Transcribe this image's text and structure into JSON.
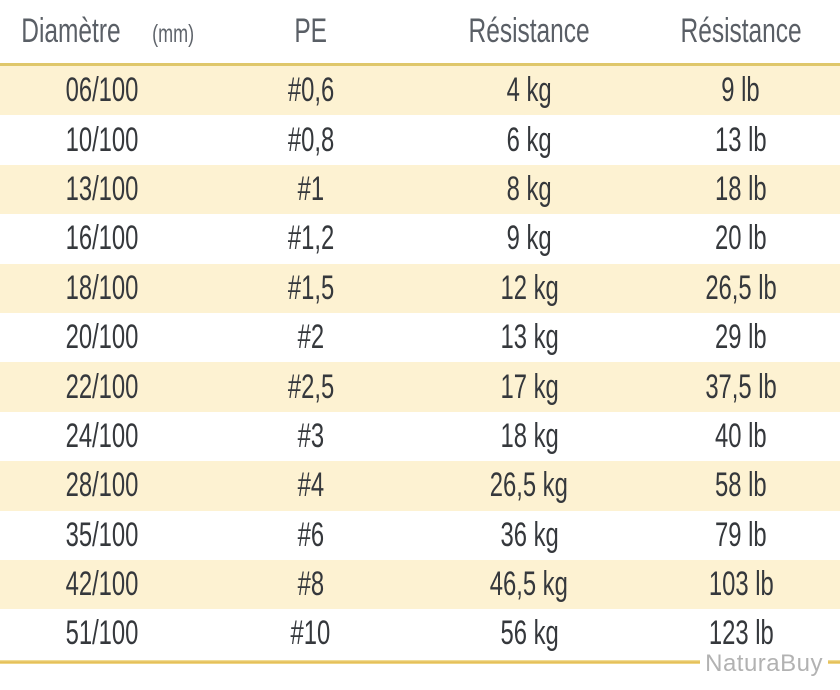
{
  "table": {
    "headers": [
      {
        "label": "Diamètre",
        "unit": "(mm)"
      },
      {
        "label": "PE"
      },
      {
        "label": "Résistance"
      },
      {
        "label": "Résistance"
      }
    ],
    "rows": [
      [
        "06/100",
        "#0,6",
        "4 kg",
        "9 lb"
      ],
      [
        "10/100",
        "#0,8",
        "6 kg",
        "13 lb"
      ],
      [
        "13/100",
        "#1",
        "8 kg",
        "18 lb"
      ],
      [
        "16/100",
        "#1,2",
        "9 kg",
        "20 lb"
      ],
      [
        "18/100",
        "#1,5",
        "12 kg",
        "26,5 lb"
      ],
      [
        "20/100",
        "#2",
        "13 kg",
        "29 lb"
      ],
      [
        "22/100",
        "#2,5",
        "17 kg",
        "37,5 lb"
      ],
      [
        "24/100",
        "#3",
        "18 kg",
        "40 lb"
      ],
      [
        "28/100",
        "#4",
        "26,5 kg",
        "58 lb"
      ],
      [
        "35/100",
        "#6",
        "36 kg",
        "79 lb"
      ],
      [
        "42/100",
        "#8",
        "46,5 kg",
        "103 lb"
      ],
      [
        "51/100",
        "#10",
        "56 kg",
        "123 lb"
      ]
    ]
  },
  "watermark": "NaturaBuy",
  "colors": {
    "accent_gold": "#e2bd4f",
    "header_divider_gold": "#dfc76b",
    "row_stripe_cream": "#fdf2d2",
    "header_text": "#5a5f66",
    "body_text": "#35383c",
    "watermark_gray": "#b2b2b2"
  },
  "chart_data": {
    "type": "table",
    "title": "",
    "columns": [
      "Diamètre (mm)",
      "PE",
      "Résistance",
      "Résistance"
    ],
    "column_units": [
      "mm",
      "PE rating",
      "kg",
      "lb"
    ],
    "rows": [
      [
        "06/100",
        "#0,6",
        "4 kg",
        "9 lb"
      ],
      [
        "10/100",
        "#0,8",
        "6 kg",
        "13 lb"
      ],
      [
        "13/100",
        "#1",
        "8 kg",
        "18 lb"
      ],
      [
        "16/100",
        "#1,2",
        "9 kg",
        "20 lb"
      ],
      [
        "18/100",
        "#1,5",
        "12 kg",
        "26,5 lb"
      ],
      [
        "20/100",
        "#2",
        "13 kg",
        "29 lb"
      ],
      [
        "22/100",
        "#2,5",
        "17 kg",
        "37,5 lb"
      ],
      [
        "24/100",
        "#3",
        "18 kg",
        "40 lb"
      ],
      [
        "28/100",
        "#4",
        "26,5 kg",
        "58 lb"
      ],
      [
        "35/100",
        "#6",
        "36 kg",
        "79 lb"
      ],
      [
        "42/100",
        "#8",
        "46,5 kg",
        "103 lb"
      ],
      [
        "51/100",
        "#10",
        "56 kg",
        "123 lb"
      ]
    ],
    "layout_hints": {
      "striped_rows": "odd rows cream #fdf2d2, even rows white",
      "alignment": "all columns centered",
      "top_rule_and_bottom_rule": "gold horizontal lines"
    }
  }
}
